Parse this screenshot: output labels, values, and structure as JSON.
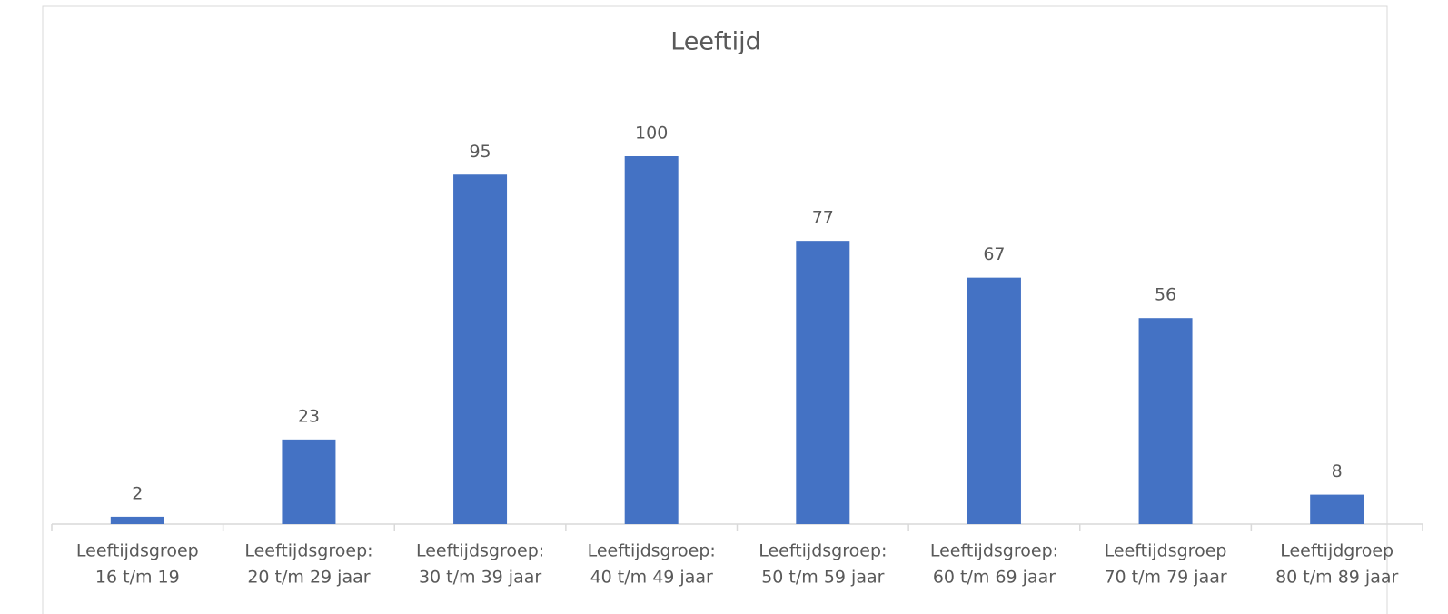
{
  "chart_data": {
    "type": "bar",
    "title": "Leeftijd",
    "categories": [
      [
        "Leeftijdsgroep",
        "16 t/m 19"
      ],
      [
        "Leeftijdsgroep:",
        "20 t/m 29 jaar"
      ],
      [
        "Leeftijdsgroep:",
        "30 t/m 39 jaar"
      ],
      [
        "Leeftijdsgroep:",
        "40 t/m 49 jaar"
      ],
      [
        "Leeftijdsgroep:",
        "50 t/m 59 jaar"
      ],
      [
        "Leeftijdsgroep:",
        "60 t/m 69 jaar"
      ],
      [
        "Leeftijdsgroep",
        "70 t/m 79 jaar"
      ],
      [
        "Leeftijdgroep",
        "80 t/m 89 jaar"
      ]
    ],
    "values": [
      2,
      23,
      95,
      100,
      77,
      67,
      56,
      8
    ],
    "color": "#4472c4",
    "ylim": [
      0,
      100
    ]
  }
}
